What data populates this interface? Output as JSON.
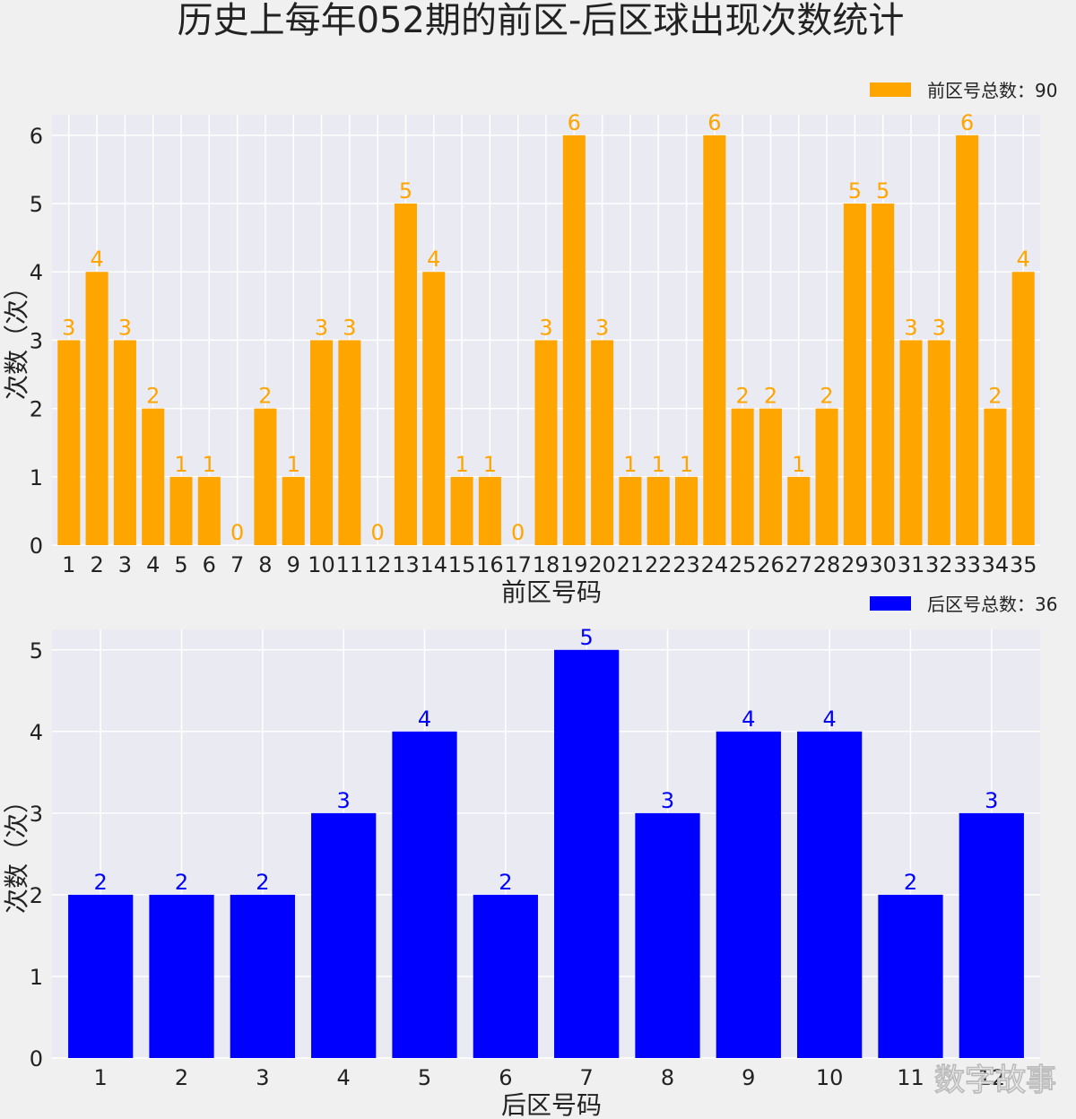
{
  "title": "历史上每年052期的前区-后区球出现次数统计",
  "watermark": "数字故事",
  "chart_data": [
    {
      "type": "bar",
      "name": "front",
      "legend": "前区号总数：90",
      "legend_position": "top-right",
      "color": "#ffa500",
      "xlabel": "前区号码",
      "ylabel": "次数（次）",
      "ylim": [
        0,
        6.3
      ],
      "yticks": [
        0,
        1,
        2,
        3,
        4,
        5,
        6
      ],
      "grid": true,
      "categories": [
        "1",
        "2",
        "3",
        "4",
        "5",
        "6",
        "7",
        "8",
        "9",
        "10",
        "11",
        "12",
        "13",
        "14",
        "15",
        "16",
        "17",
        "18",
        "19",
        "20",
        "21",
        "22",
        "23",
        "24",
        "25",
        "26",
        "27",
        "28",
        "29",
        "30",
        "31",
        "32",
        "33",
        "34",
        "35"
      ],
      "values": [
        3,
        4,
        3,
        2,
        1,
        1,
        0,
        2,
        1,
        3,
        3,
        0,
        5,
        4,
        1,
        1,
        0,
        3,
        6,
        3,
        1,
        1,
        1,
        6,
        2,
        2,
        1,
        2,
        5,
        5,
        3,
        3,
        6,
        2,
        4
      ]
    },
    {
      "type": "bar",
      "name": "back",
      "legend": "后区号总数：36",
      "legend_position": "top-right",
      "color": "#0000ff",
      "xlabel": "后区号码",
      "ylabel": "次数（次）",
      "ylim": [
        0,
        5.25
      ],
      "yticks": [
        0,
        1,
        2,
        3,
        4,
        5
      ],
      "grid": true,
      "categories": [
        "1",
        "2",
        "3",
        "4",
        "5",
        "6",
        "7",
        "8",
        "9",
        "10",
        "11",
        "12"
      ],
      "values": [
        2,
        2,
        2,
        3,
        4,
        2,
        5,
        3,
        4,
        4,
        2,
        3
      ]
    }
  ]
}
